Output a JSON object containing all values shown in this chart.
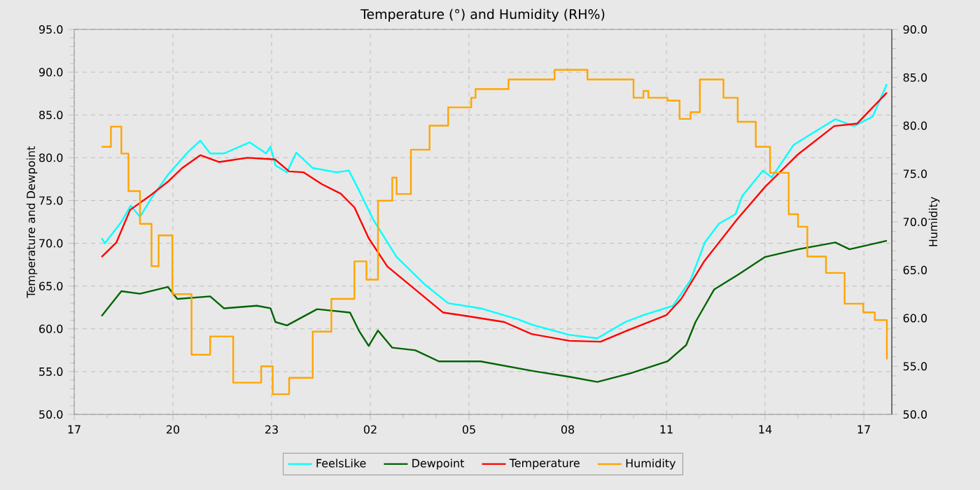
{
  "chart_data": {
    "type": "line",
    "title": "Temperature (°) and Humidity (RH%)",
    "ylabel": "Temperature and Dewpoint",
    "y2label": "Humidity",
    "xlim": [
      "--01-01T17:00",
      "--01-02T17:51"
    ],
    "xticks": [
      {
        "value": "--01-01T17:00",
        "label": "17"
      },
      {
        "value": "--01-01T20:00",
        "label": "20"
      },
      {
        "value": "--01-01T23:00",
        "label": "23"
      },
      {
        "value": "--01-02T02:00",
        "label": "02"
      },
      {
        "value": "--01-02T05:00",
        "label": "05"
      },
      {
        "value": "--01-02T08:00",
        "label": "08"
      },
      {
        "value": "--01-02T11:00",
        "label": "11"
      },
      {
        "value": "--01-02T14:00",
        "label": "14"
      },
      {
        "value": "--01-02T17:00",
        "label": "17"
      }
    ],
    "ylim": [
      50,
      95
    ],
    "yticks": [
      {
        "value": 50,
        "label": "50.0"
      },
      {
        "value": 55,
        "label": "55.0"
      },
      {
        "value": 60,
        "label": "60.0"
      },
      {
        "value": 65,
        "label": "65.0"
      },
      {
        "value": 70,
        "label": "70.0"
      },
      {
        "value": 75,
        "label": "75.0"
      },
      {
        "value": 80,
        "label": "80.0"
      },
      {
        "value": 85,
        "label": "85.0"
      },
      {
        "value": 90,
        "label": "90.0"
      },
      {
        "value": 95,
        "label": "95.0"
      }
    ],
    "y2lim": [
      50,
      90
    ],
    "y2ticks": [
      {
        "value": 50,
        "label": "50.0"
      },
      {
        "value": 55,
        "label": "55.0"
      },
      {
        "value": 60,
        "label": "60.0"
      },
      {
        "value": 65,
        "label": "65.0"
      },
      {
        "value": 70,
        "label": "70.0"
      },
      {
        "value": 75,
        "label": "75.0"
      },
      {
        "value": 80,
        "label": "80.0"
      },
      {
        "value": 85,
        "label": "85.0"
      },
      {
        "value": 90,
        "label": "90.0"
      }
    ],
    "grid": true,
    "legend": "bottom",
    "series": [
      {
        "name": "FeelsLike",
        "color": "#00ffff",
        "x": [
          "--01-01T17:50",
          "--01-01T17:56",
          "--01-01T18:26",
          "--01-01T18:43",
          "--01-01T19:00",
          "--01-01T19:21",
          "--01-01T19:51",
          "--01-01T20:25",
          "--01-01T20:50",
          "--01-01T21:08",
          "--01-01T21:33",
          "--01-01T22:20",
          "--01-01T22:50",
          "--01-01T22:58",
          "--01-01T23:07",
          "--01-01T23:28",
          "--01-01T23:45",
          "--01-02T00:15",
          "--01-02T00:58",
          "--01-02T01:21",
          "--01-02T01:40",
          "--01-02T02:05",
          "--01-02T02:48",
          "--01-02T03:39",
          "--01-02T04:22",
          "--01-02T05:21",
          "--01-02T06:30",
          "--01-02T06:54",
          "--01-02T08:03",
          "--01-02T08:54",
          "--01-02T09:45",
          "--01-02T10:18",
          "--01-02T11:12",
          "--01-02T11:44",
          "--01-02T12:10",
          "--01-02T12:36",
          "--01-02T13:06",
          "--01-02T13:18",
          "--01-02T13:56",
          "--01-02T14:12",
          "--01-02T14:52",
          "--01-02T15:17",
          "--01-02T16:08",
          "--01-02T16:42",
          "--01-02T17:16",
          "--01-02T17:42"
        ],
        "values": [
          70.6,
          70.0,
          72.5,
          74.4,
          73.1,
          75.3,
          78.0,
          80.5,
          82.0,
          80.5,
          80.5,
          81.8,
          80.5,
          81.3,
          79.1,
          78.3,
          80.6,
          78.8,
          78.3,
          78.5,
          76.1,
          72.8,
          68.4,
          65.2,
          63.0,
          62.4,
          61.1,
          60.5,
          59.3,
          58.9,
          60.8,
          61.6,
          62.7,
          65.7,
          70.1,
          72.3,
          73.4,
          75.5,
          78.5,
          77.7,
          81.5,
          82.5,
          84.5,
          83.7,
          84.8,
          88.6
        ]
      },
      {
        "name": "Dewpoint",
        "color": "#006400",
        "x": [
          "--01-01T17:50",
          "--01-01T18:26",
          "--01-01T19:00",
          "--01-01T19:51",
          "--01-01T20:08",
          "--01-01T21:08",
          "--01-01T21:33",
          "--01-01T22:33",
          "--01-01T22:58",
          "--01-01T23:07",
          "--01-01T23:28",
          "--01-02T00:23",
          "--01-02T01:23",
          "--01-02T01:40",
          "--01-02T01:57",
          "--01-02T02:14",
          "--01-02T02:40",
          "--01-02T03:22",
          "--01-02T04:05",
          "--01-02T05:21",
          "--01-02T06:54",
          "--01-02T08:03",
          "--01-02T08:54",
          "--01-02T09:54",
          "--01-02T11:02",
          "--01-02T11:36",
          "--01-02T11:53",
          "--01-02T12:27",
          "--01-02T13:10",
          "--01-02T14:00",
          "--01-02T15:00",
          "--01-02T16:08",
          "--01-02T16:34",
          "--01-02T17:42"
        ],
        "values": [
          61.5,
          64.4,
          64.1,
          64.9,
          63.5,
          63.8,
          62.4,
          62.7,
          62.4,
          60.8,
          60.4,
          62.3,
          61.9,
          59.7,
          58.0,
          59.8,
          57.8,
          57.5,
          56.2,
          56.2,
          55.1,
          54.4,
          53.8,
          54.8,
          56.2,
          58.1,
          60.8,
          64.6,
          66.3,
          68.4,
          69.3,
          70.1,
          69.3,
          70.3
        ]
      },
      {
        "name": "Temperature",
        "color": "#ff0000",
        "x": [
          "--01-01T17:50",
          "--01-01T18:17",
          "--01-01T18:42",
          "--01-01T19:17",
          "--01-01T19:51",
          "--01-01T20:17",
          "--01-01T20:50",
          "--01-01T21:24",
          "--01-01T22:16",
          "--01-01T23:06",
          "--01-01T23:32",
          "--01-01T23:58",
          "--01-02T00:32",
          "--01-02T01:06",
          "--01-02T01:31",
          "--01-02T01:57",
          "--01-02T02:31",
          "--01-02T03:22",
          "--01-02T04:13",
          "--01-02T04:56",
          "--01-02T06:04",
          "--01-02T06:54",
          "--01-02T08:03",
          "--01-02T09:00",
          "--01-02T09:45",
          "--01-02T11:00",
          "--01-02T11:27",
          "--01-02T12:09",
          "--01-02T13:09",
          "--01-02T14:00",
          "--01-02T15:00",
          "--01-02T16:06",
          "--01-02T16:48",
          "--01-02T17:42"
        ],
        "values": [
          68.4,
          70.1,
          73.9,
          75.5,
          77.2,
          78.8,
          80.3,
          79.5,
          80.0,
          79.8,
          78.4,
          78.3,
          76.9,
          75.8,
          74.2,
          70.6,
          67.3,
          64.6,
          61.9,
          61.5,
          60.8,
          59.4,
          58.6,
          58.5,
          59.7,
          61.6,
          63.5,
          67.9,
          72.8,
          76.6,
          80.4,
          83.7,
          84.0,
          87.6
        ]
      },
      {
        "name": "Humidity",
        "color": "#ffa500",
        "type": "step",
        "axis": "y2",
        "x": [
          "--01-01T17:50",
          "--01-01T18:07",
          "--01-01T18:26",
          "--01-01T18:39",
          "--01-01T19:00",
          "--01-01T19:21",
          "--01-01T19:34",
          "--01-01T19:59",
          "--01-01T20:34",
          "--01-01T21:08",
          "--01-01T21:50",
          "--01-01T22:41",
          "--01-01T23:02",
          "--01-01T23:32",
          "--01-02T00:15",
          "--01-02T00:49",
          "--01-02T01:31",
          "--01-02T01:53",
          "--01-02T02:14",
          "--01-02T02:40",
          "--01-02T02:48",
          "--01-02T03:14",
          "--01-02T03:48",
          "--01-02T04:22",
          "--01-02T05:04",
          "--01-02T05:12",
          "--01-02T06:12",
          "--01-02T07:36",
          "--01-02T08:33",
          "--01-02T08:36",
          "--01-02T09:45",
          "--01-02T10:00",
          "--01-02T10:18",
          "--01-02T10:27",
          "--01-02T11:02",
          "--01-02T11:24",
          "--01-02T11:44",
          "--01-02T12:01",
          "--01-02T12:18",
          "--01-02T12:44",
          "--01-02T13:10",
          "--01-02T13:43",
          "--01-02T14:09",
          "--01-02T14:43",
          "--01-02T15:00",
          "--01-02T15:17",
          "--01-02T15:51",
          "--01-02T16:25",
          "--01-02T16:59",
          "--01-02T17:20",
          "--01-02T17:42"
        ],
        "values": [
          77.8,
          79.9,
          77.1,
          73.2,
          69.8,
          65.4,
          68.6,
          62.5,
          56.2,
          58.1,
          53.3,
          55.0,
          52.1,
          53.8,
          58.6,
          62.0,
          65.9,
          64.0,
          72.2,
          74.6,
          72.9,
          77.5,
          80.0,
          81.9,
          82.9,
          83.8,
          84.8,
          85.8,
          85.8,
          84.8,
          84.8,
          82.9,
          83.6,
          82.9,
          82.6,
          80.7,
          81.4,
          84.8,
          84.8,
          82.9,
          80.4,
          77.8,
          75.1,
          70.8,
          69.5,
          66.4,
          64.7,
          61.5,
          60.6,
          59.8,
          55.7
        ]
      }
    ]
  }
}
